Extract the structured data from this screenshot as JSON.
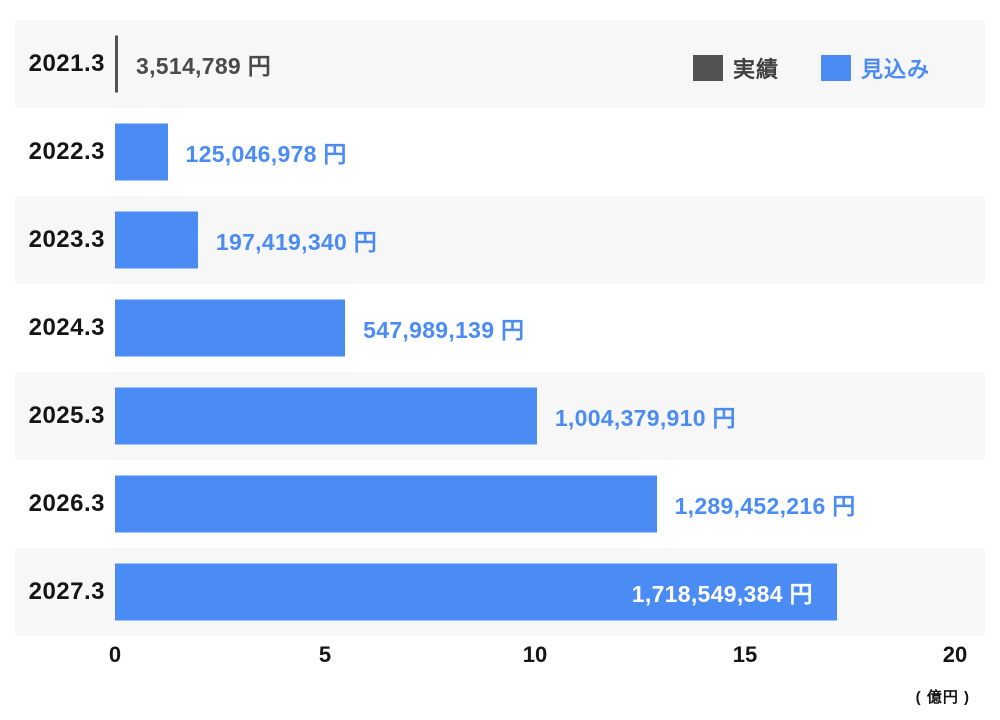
{
  "chart_data": {
    "type": "bar",
    "orientation": "horizontal",
    "title": "",
    "xlabel_unit": "( 億円 )",
    "x_ticks": [
      "0",
      "5",
      "10",
      "15",
      "20"
    ],
    "x_max_oku": 20,
    "oku_in_yen": 100000000,
    "legend": [
      {
        "name": "actual",
        "label": "実績",
        "color": "#525252"
      },
      {
        "name": "forecast",
        "label": "見込み",
        "color": "#4a8cf4"
      }
    ],
    "rows": [
      {
        "category": "2021.3",
        "series": "actual",
        "value_yen": 3514789,
        "value_label": "3,514,789 円",
        "label_inside": false
      },
      {
        "category": "2022.3",
        "series": "forecast",
        "value_yen": 125046978,
        "value_label": "125,046,978 円",
        "label_inside": false
      },
      {
        "category": "2023.3",
        "series": "forecast",
        "value_yen": 197419340,
        "value_label": "197,419,340 円",
        "label_inside": false
      },
      {
        "category": "2024.3",
        "series": "forecast",
        "value_yen": 547989139,
        "value_label": "547,989,139 円",
        "label_inside": false
      },
      {
        "category": "2025.3",
        "series": "forecast",
        "value_yen": 1004379910,
        "value_label": "1,004,379,910 円",
        "label_inside": false
      },
      {
        "category": "2026.3",
        "series": "forecast",
        "value_yen": 1289452216,
        "value_label": "1,289,452,216 円",
        "label_inside": false
      },
      {
        "category": "2027.3",
        "series": "forecast",
        "value_yen": 1718549384,
        "value_label": "1,718,549,384 円",
        "label_inside": true
      }
    ]
  },
  "colors": {
    "actual_bar": "#525252",
    "forecast_bar": "#4a8cf4",
    "actual_text": "#4b4b4b",
    "forecast_text": "#4a8cf4",
    "legend_actual_text": "#3f3f3f",
    "inside_label_text": "#ffffff",
    "stripe": "#f7f7f7",
    "axis_text": "#151515"
  }
}
